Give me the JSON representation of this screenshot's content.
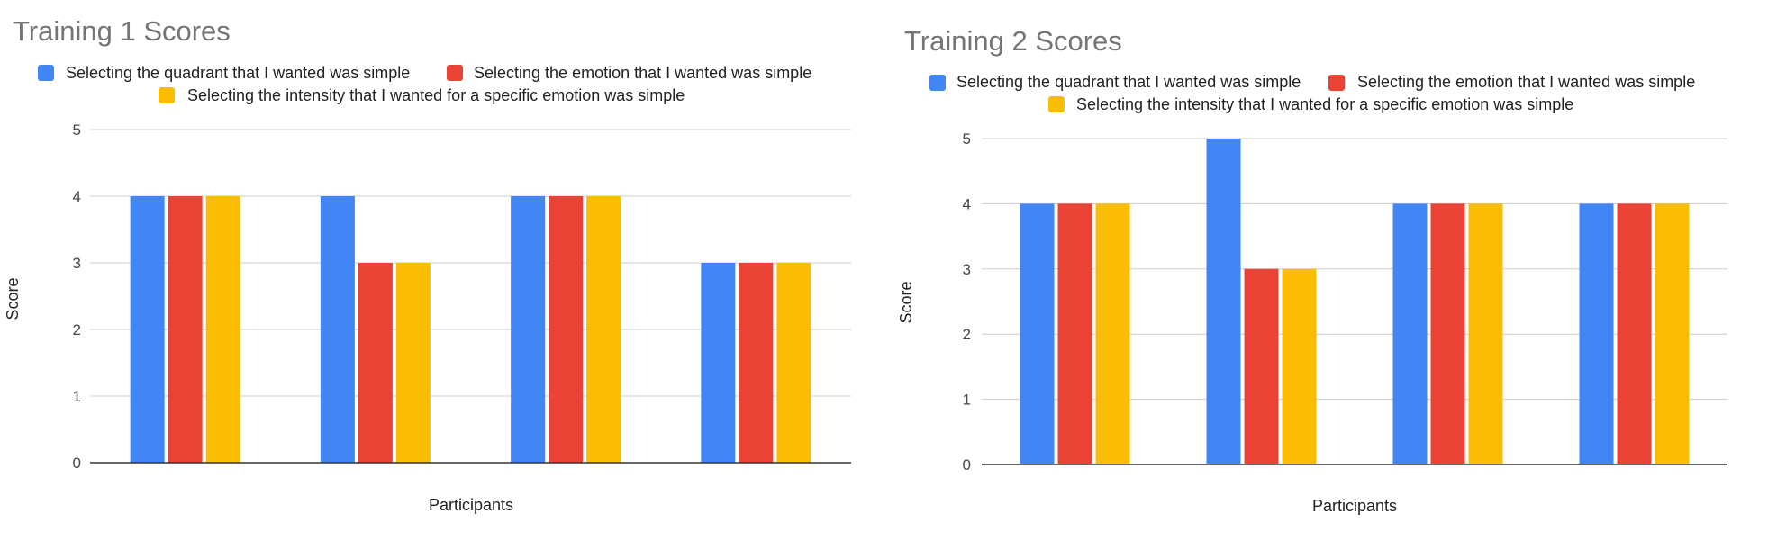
{
  "colors": {
    "quadrant": "#4285F4",
    "emotion": "#EA4335",
    "intensity": "#FBBC04"
  },
  "chart_data": [
    {
      "type": "bar",
      "title": "Training 1 Scores",
      "xlabel": "Participants",
      "ylabel": "Score",
      "ylim": [
        0,
        5
      ],
      "yticks": [
        0,
        1,
        2,
        3,
        4,
        5
      ],
      "grid": true,
      "legend_position": "top",
      "categories": [
        "",
        "",
        "",
        ""
      ],
      "series": [
        {
          "name": "Selecting the quadrant that I wanted was simple",
          "color": "#4285F4",
          "values": [
            4,
            4,
            4,
            3
          ]
        },
        {
          "name": "Selecting the emotion that I wanted was simple",
          "color": "#EA4335",
          "values": [
            4,
            3,
            4,
            3
          ]
        },
        {
          "name": "Selecting the intensity that I wanted for a specific emotion was simple",
          "color": "#FBBC04",
          "values": [
            4,
            3,
            4,
            3
          ]
        }
      ]
    },
    {
      "type": "bar",
      "title": "Training 2 Scores",
      "xlabel": "Participants",
      "ylabel": "Score",
      "ylim": [
        0,
        5
      ],
      "yticks": [
        0,
        1,
        2,
        3,
        4,
        5
      ],
      "grid": true,
      "legend_position": "top",
      "categories": [
        "",
        "",
        "",
        ""
      ],
      "series": [
        {
          "name": "Selecting the quadrant that I wanted was simple",
          "color": "#4285F4",
          "values": [
            4,
            5,
            4,
            4
          ]
        },
        {
          "name": "Selecting the emotion that I wanted was simple",
          "color": "#EA4335",
          "values": [
            4,
            3,
            4,
            4
          ]
        },
        {
          "name": "Selecting the intensity that I wanted for a specific emotion was simple",
          "color": "#FBBC04",
          "values": [
            4,
            3,
            4,
            4
          ]
        }
      ]
    }
  ]
}
